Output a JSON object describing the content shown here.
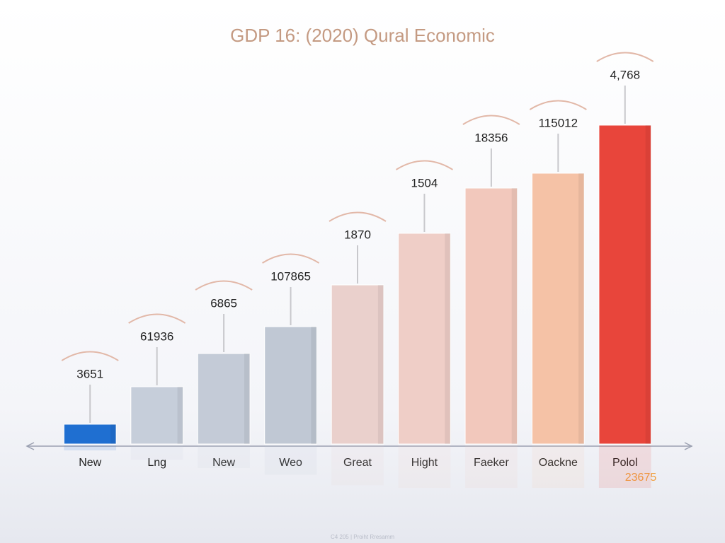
{
  "chart_data": {
    "type": "bar",
    "title": "GDP 16: (2020) Qural Economic",
    "categories": [
      "New",
      "Lng",
      "New",
      "Weo",
      "Great",
      "Hight",
      "Faeker",
      "Oackne",
      "Polol"
    ],
    "values": [
      28,
      81,
      128,
      166,
      225,
      298,
      362,
      383,
      451
    ],
    "colors": [
      "#1f6fd1",
      "#c6ceda",
      "#c4cbd7",
      "#c0c8d4",
      "#ead0cc",
      "#efcec7",
      "#f2c8bc",
      "#f5c2a6",
      "#e8453b"
    ],
    "annotations": [
      "3651",
      "61936",
      "6865",
      "107865",
      "1870",
      "1504",
      "18356",
      "115012",
      "4,768"
    ],
    "note": "23675",
    "footer": "C4 205 | Proiht Rresamm",
    "ylim": [
      0,
      500
    ]
  }
}
